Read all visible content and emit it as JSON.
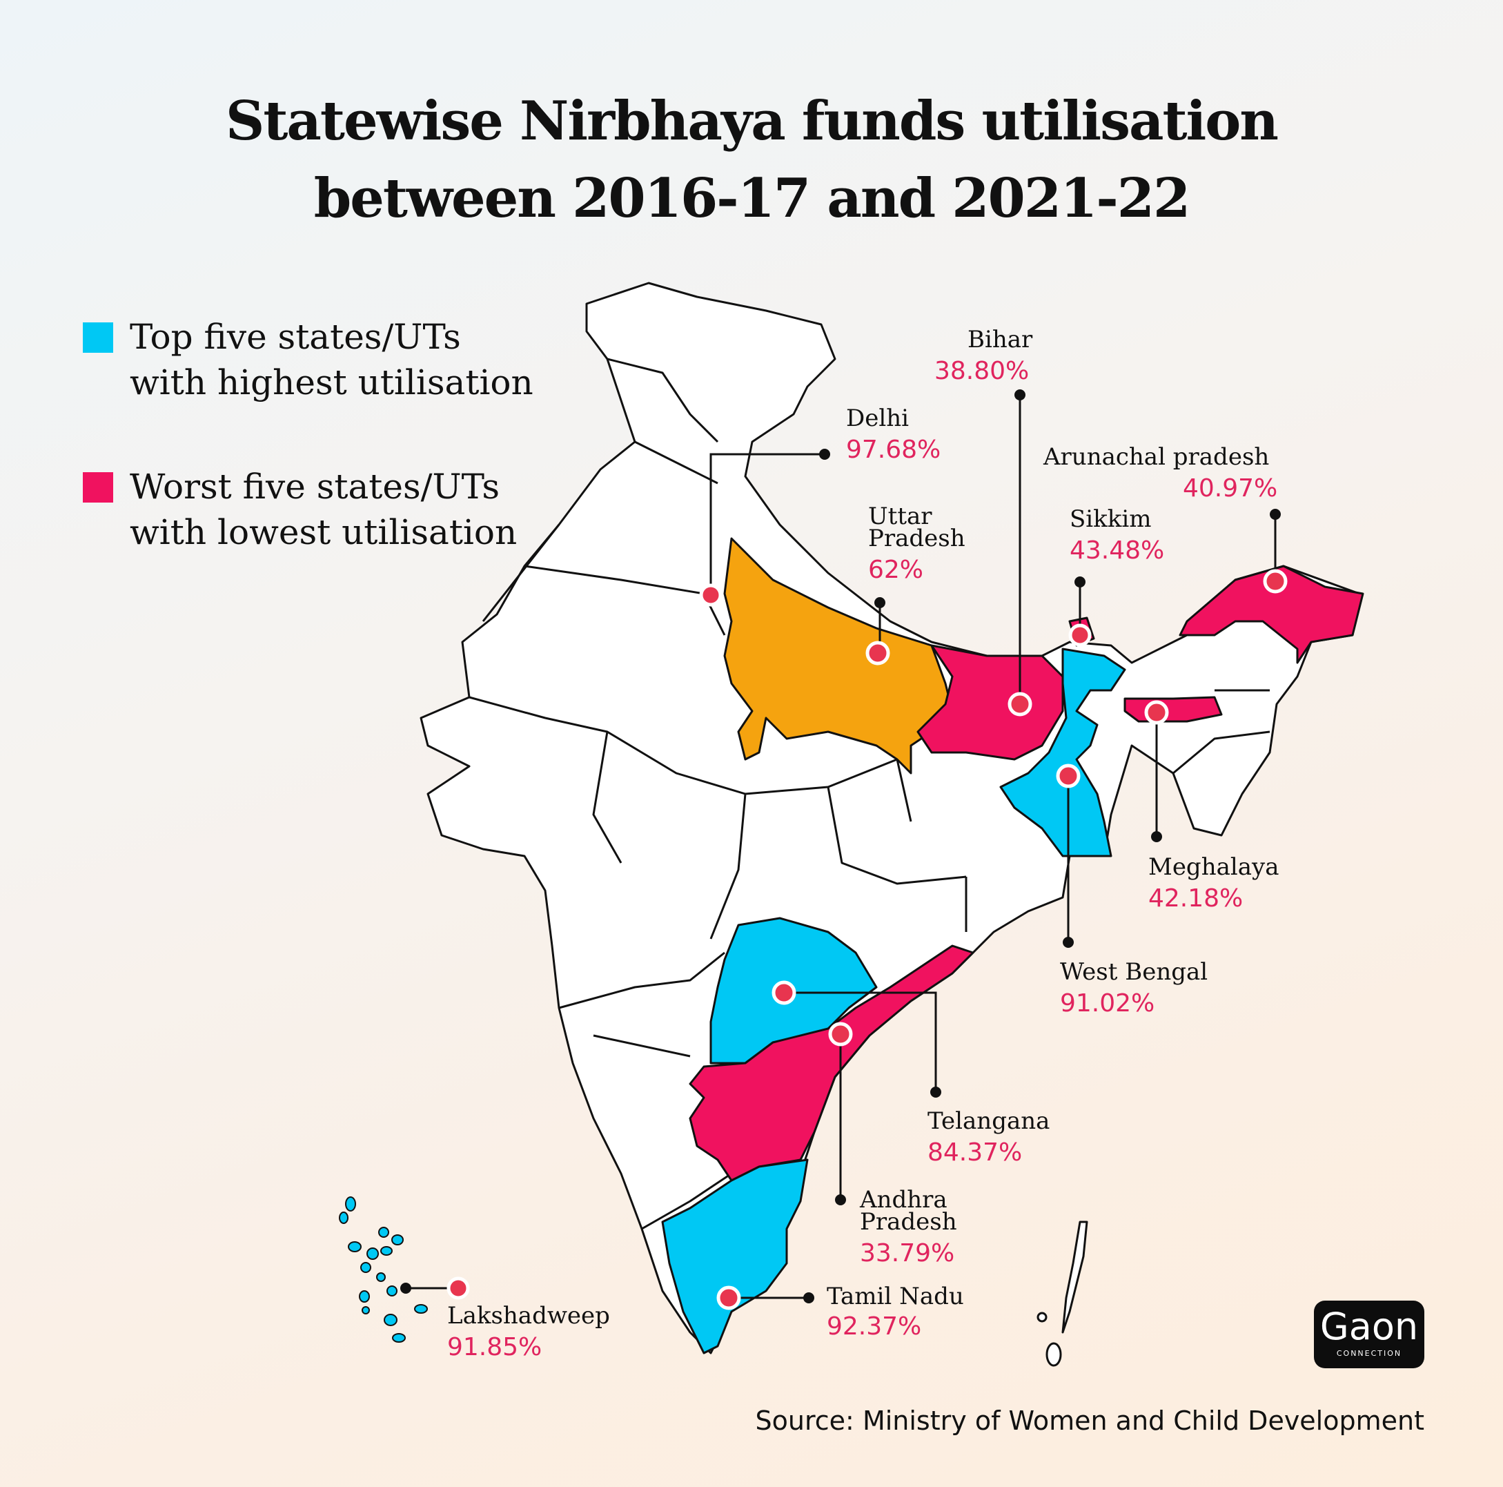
{
  "title_line1": "Statewise Nirbhaya funds utilisation",
  "title_line2": "between 2016-17 and 2021-22",
  "legend": {
    "top": {
      "line1": "Top five states/UTs",
      "line2": "with highest utilisation",
      "color": "#00c8f4"
    },
    "worst": {
      "line1": "Worst five states/UTs",
      "line2": "with lowest utilisation",
      "color": "#f0125f"
    }
  },
  "states": {
    "bihar": {
      "name": "Bihar",
      "value": "38.80%"
    },
    "delhi": {
      "name": "Delhi",
      "value": "97.68%"
    },
    "arunachal": {
      "name": "Arunachal pradesh",
      "value": "40.97%"
    },
    "uttar_pradesh": {
      "name_line1": "Uttar",
      "name_line2": "Pradesh",
      "value": "62%"
    },
    "sikkim": {
      "name": "Sikkim",
      "value": "43.48%"
    },
    "meghalaya": {
      "name": "Meghalaya",
      "value": "42.18%"
    },
    "west_bengal": {
      "name": "West Bengal",
      "value": "91.02%"
    },
    "telangana": {
      "name": "Telangana",
      "value": "84.37%"
    },
    "andhra_pradesh": {
      "name_line1": "Andhra",
      "name_line2": "Pradesh",
      "value": "33.79%"
    },
    "tamil_nadu": {
      "name": "Tamil Nadu",
      "value": "92.37%"
    },
    "lakshadweep": {
      "name": "Lakshadweep",
      "value": "91.85%"
    }
  },
  "colors": {
    "top": "#00c8f4",
    "worst": "#f0125f",
    "uttar_pradesh": "#f5a30f",
    "marker": "#e8354f"
  },
  "source": "Source: Ministry of Women and Child Development",
  "logo": {
    "main": "Gaon",
    "sub": "CONNECTION"
  }
}
